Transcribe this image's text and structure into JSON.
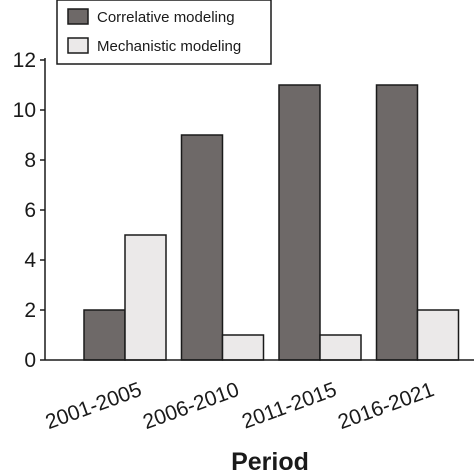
{
  "chart_data": {
    "type": "bar",
    "title": "",
    "xlabel": "Period",
    "ylabel": "",
    "categories": [
      "2001-2005",
      "2006-2010",
      "2011-2015",
      "2016-2021"
    ],
    "series": [
      {
        "name": "Correlative modeling",
        "values": [
          2,
          9,
          11,
          11
        ],
        "color": "#6e6968"
      },
      {
        "name": "Mechanistic modeling",
        "values": [
          5,
          1,
          1,
          2
        ],
        "color": "#ebe9e9"
      }
    ],
    "ylim": [
      0,
      12
    ],
    "yticks": [
      0,
      2,
      4,
      6,
      8,
      10,
      12
    ],
    "grid": false,
    "legend_position": "top-left"
  }
}
